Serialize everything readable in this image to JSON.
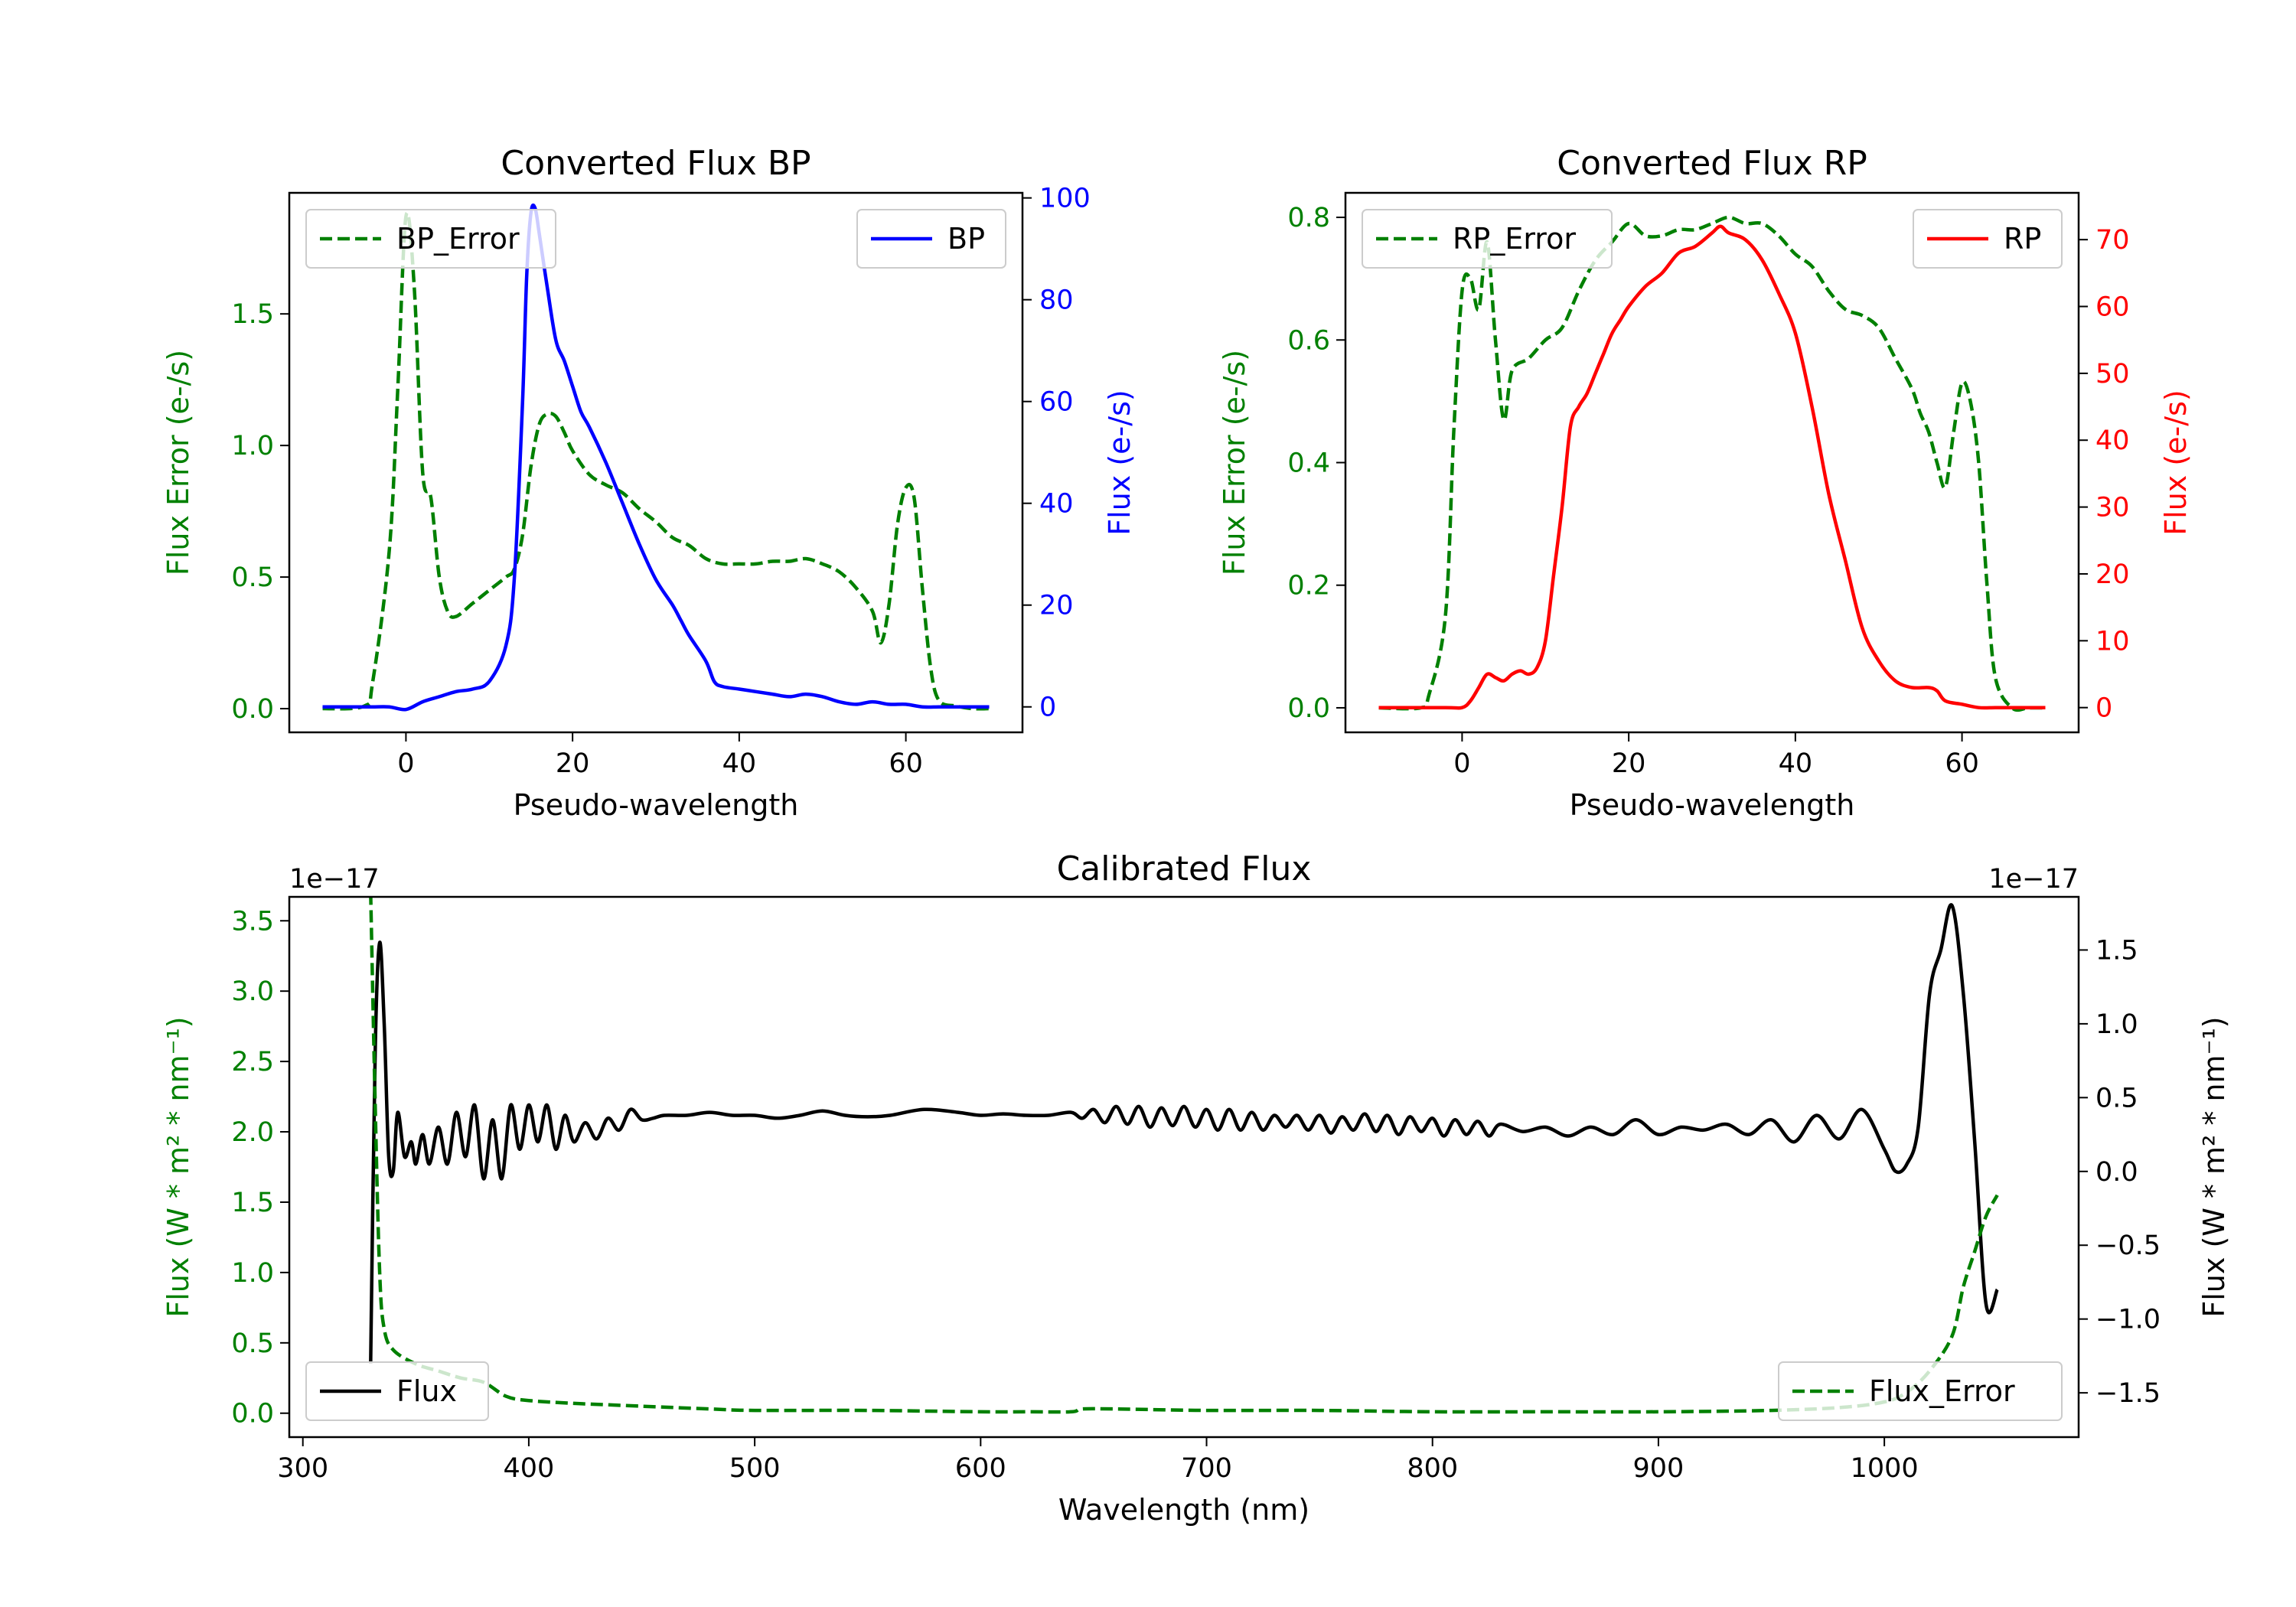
{
  "chart_data": [
    {
      "type": "line",
      "title": "Converted Flux BP",
      "xlabel": "Pseudo-wavelength",
      "xlim": [
        -14,
        74
      ],
      "xticks": [
        0,
        20,
        40,
        60
      ],
      "left_axis": {
        "label": "Flux Error (e-/s)",
        "color": "#008000",
        "ylim": [
          -0.09,
          1.96
        ],
        "ticks": [
          "0.0",
          "0.5",
          "1.0",
          "1.5"
        ],
        "tick_values": [
          0,
          0.5,
          1.0,
          1.5
        ]
      },
      "right_axis": {
        "label": "Flux (e-/s)",
        "color": "#0000ff",
        "ylim": [
          -5,
          101
        ],
        "ticks": [
          "0",
          "20",
          "40",
          "60",
          "80",
          "100"
        ],
        "tick_values": [
          0,
          20,
          40,
          60,
          80,
          100
        ]
      },
      "series": [
        {
          "name": "BP_Error",
          "axis": "left",
          "style": "dashed",
          "color": "#008000",
          "x": [
            -10,
            -5,
            -4,
            -2,
            -1,
            0,
            1,
            2,
            3,
            4,
            5,
            6,
            8,
            10,
            12,
            13,
            14,
            15,
            16,
            17,
            18,
            19,
            20,
            22,
            24,
            26,
            28,
            30,
            32,
            34,
            36,
            38,
            40,
            42,
            44,
            46,
            48,
            50,
            52,
            54,
            56,
            57,
            58,
            59,
            60,
            61,
            62,
            63,
            64,
            66,
            68,
            70
          ],
          "values": [
            0.0,
            0.01,
            0.1,
            0.6,
            1.2,
            1.87,
            1.6,
            0.9,
            0.8,
            0.5,
            0.37,
            0.35,
            0.4,
            0.45,
            0.5,
            0.53,
            0.66,
            0.92,
            1.08,
            1.12,
            1.11,
            1.05,
            0.98,
            0.89,
            0.85,
            0.82,
            0.76,
            0.71,
            0.65,
            0.62,
            0.57,
            0.55,
            0.55,
            0.55,
            0.56,
            0.56,
            0.57,
            0.55,
            0.52,
            0.46,
            0.37,
            0.25,
            0.4,
            0.7,
            0.84,
            0.8,
            0.45,
            0.15,
            0.03,
            0.01,
            0.0,
            0.0
          ]
        },
        {
          "name": "BP",
          "axis": "right",
          "style": "solid",
          "color": "#0000ff",
          "x": [
            -10,
            -6,
            -4,
            -2,
            0,
            2,
            4,
            6,
            8,
            10,
            12,
            13,
            14,
            14.5,
            15,
            15.5,
            16,
            17,
            18,
            19,
            20,
            21,
            22,
            24,
            26,
            28,
            30,
            32,
            33,
            34,
            36,
            37,
            38,
            40,
            42,
            44,
            46,
            48,
            50,
            52,
            54,
            56,
            58,
            60,
            62,
            64,
            66,
            68,
            70
          ],
          "values": [
            0,
            0,
            0,
            0,
            -0.5,
            1,
            2,
            3,
            3.5,
            5,
            12,
            25,
            60,
            85,
            97,
            98,
            93,
            82,
            72,
            68,
            63,
            58,
            55,
            48,
            40,
            32,
            25,
            20,
            17,
            14,
            9,
            5,
            4,
            3.5,
            3,
            2.5,
            2,
            2.5,
            2,
            1,
            0.5,
            1,
            0.5,
            0.5,
            0,
            0,
            0,
            0,
            0
          ]
        }
      ],
      "legends": [
        {
          "items": [
            "BP_Error"
          ],
          "placement": "upper left"
        },
        {
          "items": [
            "BP"
          ],
          "placement": "upper right"
        }
      ]
    },
    {
      "type": "line",
      "title": "Converted Flux RP",
      "xlabel": "Pseudo-wavelength",
      "xlim": [
        -14,
        74
      ],
      "xticks": [
        0,
        20,
        40,
        60
      ],
      "left_axis": {
        "label": "Flux Error (e-/s)",
        "color": "#008000",
        "ylim": [
          -0.04,
          0.84
        ],
        "ticks": [
          "0.0",
          "0.2",
          "0.4",
          "0.6",
          "0.8"
        ],
        "tick_values": [
          0,
          0.2,
          0.4,
          0.6,
          0.8
        ]
      },
      "right_axis": {
        "label": "Flux (e-/s)",
        "color": "#ff0000",
        "ylim": [
          -3.7,
          77
        ],
        "ticks": [
          "0",
          "10",
          "20",
          "30",
          "40",
          "50",
          "60",
          "70"
        ],
        "tick_values": [
          0,
          10,
          20,
          30,
          40,
          50,
          60,
          70
        ]
      },
      "series": [
        {
          "name": "RP_Error",
          "axis": "left",
          "style": "dashed",
          "color": "#008000",
          "x": [
            -10,
            -5,
            -4,
            -2,
            -1,
            0,
            1,
            2,
            3,
            4,
            5,
            6,
            8,
            10,
            12,
            14,
            16,
            18,
            20,
            22,
            24,
            26,
            28,
            30,
            32,
            34,
            36,
            38,
            40,
            42,
            44,
            46,
            48,
            50,
            52,
            54,
            55,
            56,
            57,
            58,
            59,
            60,
            61,
            62,
            63,
            64,
            66,
            68,
            70
          ],
          "values": [
            0.0,
            0.0,
            0.02,
            0.15,
            0.45,
            0.68,
            0.7,
            0.65,
            0.76,
            0.6,
            0.47,
            0.55,
            0.57,
            0.6,
            0.62,
            0.68,
            0.73,
            0.76,
            0.79,
            0.77,
            0.77,
            0.78,
            0.78,
            0.79,
            0.8,
            0.79,
            0.79,
            0.77,
            0.74,
            0.72,
            0.68,
            0.65,
            0.64,
            0.62,
            0.57,
            0.52,
            0.48,
            0.45,
            0.4,
            0.36,
            0.45,
            0.53,
            0.5,
            0.4,
            0.2,
            0.05,
            0.0,
            0.0,
            0.0
          ]
        },
        {
          "name": "RP",
          "axis": "right",
          "style": "solid",
          "color": "#ff0000",
          "x": [
            -10,
            -2,
            0,
            1,
            2,
            3,
            4,
            5,
            6,
            7,
            8,
            9,
            10,
            11,
            12,
            13,
            14,
            15,
            16,
            17,
            18,
            19,
            20,
            22,
            24,
            26,
            28,
            30,
            31,
            32,
            34,
            36,
            38,
            40,
            42,
            44,
            46,
            48,
            50,
            52,
            54,
            56,
            57,
            58,
            60,
            62,
            64,
            66,
            70
          ],
          "values": [
            0,
            0,
            0,
            1,
            3,
            5,
            4.5,
            4,
            5,
            5.5,
            5,
            6,
            10,
            20,
            30,
            42,
            45,
            47,
            50,
            53,
            56,
            58,
            60,
            63,
            65,
            68,
            69,
            71,
            72,
            71,
            70,
            67,
            62,
            56,
            45,
            32,
            22,
            12,
            7,
            4,
            3,
            3,
            2.5,
            1,
            0.5,
            0,
            0,
            0,
            0
          ]
        }
      ],
      "legends": [
        {
          "items": [
            "RP_Error"
          ],
          "placement": "upper left"
        },
        {
          "items": [
            "RP"
          ],
          "placement": "upper right"
        }
      ]
    },
    {
      "type": "line",
      "title": "Calibrated Flux",
      "xlabel": "Wavelength (nm)",
      "xlim": [
        294,
        1086
      ],
      "xticks": [
        300,
        400,
        500,
        600,
        700,
        800,
        900,
        1000
      ],
      "left_axis": {
        "label": "Flux (W * m² * nm⁻¹)",
        "color": "#008000",
        "offset_label": "1e−17",
        "ylim": [
          -0.17,
          3.67
        ],
        "ticks": [
          "0.0",
          "0.5",
          "1.0",
          "1.5",
          "2.0",
          "2.5",
          "3.0",
          "3.5"
        ],
        "tick_values": [
          0,
          0.5,
          1.0,
          1.5,
          2.0,
          2.5,
          3.0,
          3.5
        ]
      },
      "right_axis": {
        "label": "Flux (W * m² * nm⁻¹)",
        "color": "#000000",
        "offset_label": "1e−17",
        "ylim": [
          -1.8,
          1.86
        ],
        "ticks": [
          "1.5",
          "1.0",
          "0.5",
          "0.0",
          "−0.5",
          "−1.0",
          "−1.5"
        ],
        "tick_values": [
          1.5,
          1.0,
          0.5,
          0.0,
          -0.5,
          -1.0,
          -1.5
        ]
      },
      "series": [
        {
          "name": "Flux",
          "axis": "right",
          "style": "solid",
          "color": "#000000",
          "x": [
            330,
            332,
            334,
            336,
            338,
            340,
            342,
            345,
            348,
            350,
            353,
            356,
            360,
            364,
            368,
            372,
            376,
            380,
            384,
            388,
            392,
            396,
            400,
            404,
            408,
            412,
            416,
            420,
            425,
            430,
            435,
            440,
            445,
            450,
            455,
            460,
            470,
            480,
            490,
            500,
            510,
            520,
            530,
            540,
            550,
            560,
            575,
            590,
            600,
            610,
            620,
            630,
            640,
            645,
            650,
            655,
            660,
            665,
            670,
            675,
            680,
            685,
            690,
            695,
            700,
            705,
            710,
            715,
            720,
            725,
            730,
            735,
            740,
            745,
            750,
            755,
            760,
            765,
            770,
            775,
            780,
            785,
            790,
            795,
            800,
            805,
            810,
            815,
            820,
            825,
            830,
            840,
            850,
            860,
            870,
            880,
            890,
            900,
            910,
            920,
            930,
            940,
            950,
            960,
            970,
            980,
            990,
            1000,
            1005,
            1010,
            1015,
            1020,
            1025,
            1030,
            1035,
            1040,
            1045,
            1050
          ],
          "values": [
            -1.3,
            0.8,
            1.55,
            1.0,
            0.1,
            0.0,
            0.4,
            0.1,
            0.2,
            0.05,
            0.25,
            0.05,
            0.3,
            0.05,
            0.4,
            0.1,
            0.45,
            -0.05,
            0.35,
            -0.05,
            0.45,
            0.15,
            0.45,
            0.2,
            0.45,
            0.15,
            0.38,
            0.2,
            0.33,
            0.22,
            0.36,
            0.28,
            0.42,
            0.35,
            0.36,
            0.38,
            0.38,
            0.4,
            0.38,
            0.38,
            0.36,
            0.38,
            0.41,
            0.38,
            0.37,
            0.38,
            0.42,
            0.4,
            0.38,
            0.39,
            0.38,
            0.38,
            0.4,
            0.36,
            0.42,
            0.33,
            0.44,
            0.32,
            0.44,
            0.3,
            0.43,
            0.31,
            0.44,
            0.3,
            0.42,
            0.28,
            0.42,
            0.28,
            0.4,
            0.28,
            0.38,
            0.3,
            0.38,
            0.28,
            0.38,
            0.26,
            0.37,
            0.28,
            0.39,
            0.27,
            0.38,
            0.25,
            0.37,
            0.27,
            0.36,
            0.24,
            0.35,
            0.25,
            0.34,
            0.24,
            0.32,
            0.27,
            0.3,
            0.24,
            0.3,
            0.25,
            0.35,
            0.25,
            0.3,
            0.28,
            0.32,
            0.25,
            0.35,
            0.2,
            0.38,
            0.22,
            0.42,
            0.15,
            0.0,
            0.05,
            0.3,
            1.2,
            1.5,
            1.8,
            1.2,
            0.2,
            -0.9,
            -0.8
          ]
        },
        {
          "name": "Flux_Error",
          "axis": "left",
          "style": "dashed",
          "color": "#008000",
          "x": [
            330,
            332,
            334,
            336,
            340,
            350,
            360,
            370,
            380,
            390,
            400,
            420,
            450,
            480,
            500,
            550,
            600,
            620,
            640,
            645,
            660,
            700,
            750,
            800,
            850,
            900,
            950,
            980,
            1000,
            1010,
            1020,
            1030,
            1035,
            1040,
            1045,
            1050
          ],
          "values": [
            3.7,
            2.2,
            1.0,
            0.6,
            0.45,
            0.35,
            0.3,
            0.25,
            0.22,
            0.12,
            0.09,
            0.07,
            0.05,
            0.03,
            0.02,
            0.02,
            0.01,
            0.01,
            0.01,
            0.03,
            0.03,
            0.02,
            0.02,
            0.01,
            0.01,
            0.01,
            0.02,
            0.04,
            0.08,
            0.15,
            0.3,
            0.55,
            0.9,
            1.15,
            1.4,
            1.55
          ]
        }
      ],
      "legends": [
        {
          "items": [
            "Flux"
          ],
          "placement": "lower left"
        },
        {
          "items": [
            "Flux_Error"
          ],
          "placement": "lower right"
        }
      ]
    }
  ]
}
